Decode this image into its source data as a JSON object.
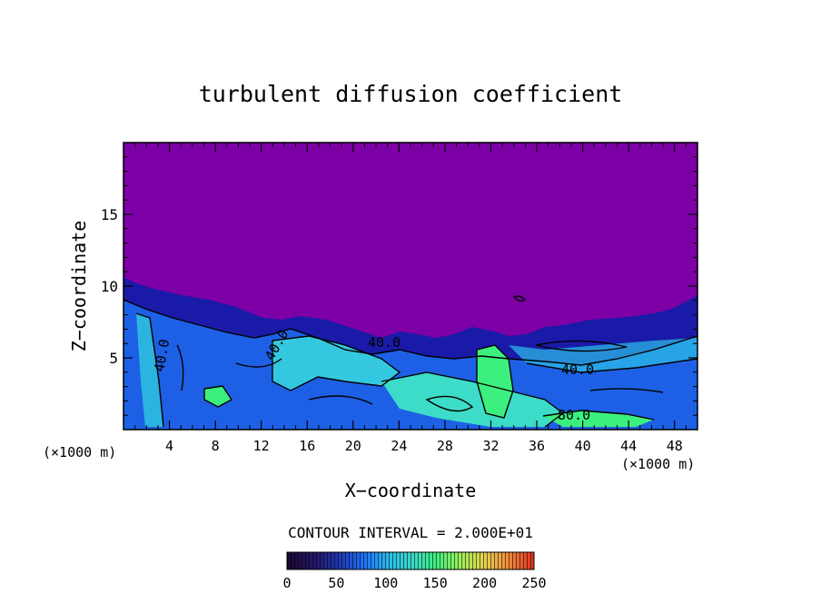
{
  "chart_data": {
    "type": "heatmap",
    "title": "turbulent diffusion coefficient",
    "xlabel": "X−coordinate",
    "ylabel": "Z−coordinate",
    "x_unit_left": "(×1000 m)",
    "x_unit_right": "(×1000 m)",
    "xlim": [
      0,
      50
    ],
    "ylim": [
      0,
      20
    ],
    "xticks": [
      4,
      8,
      12,
      16,
      20,
      24,
      28,
      32,
      36,
      40,
      44,
      48
    ],
    "yticks": [
      5,
      10,
      15
    ],
    "contour_interval_text": "CONTOUR INTERVAL = 2.000E+01",
    "contour_labels": [
      "40.0",
      "40.0",
      "40.0",
      "40.0",
      "80.0"
    ],
    "colorbar": {
      "min": 0,
      "max": 250,
      "ticks": [
        0,
        50,
        100,
        150,
        200,
        250
      ]
    },
    "colors": {
      "background_field": "#7d00a6",
      "low": "#1a1aa8",
      "mid": "#1e78ff",
      "high": "#3cd8d0",
      "peak": "#3cf080"
    }
  }
}
